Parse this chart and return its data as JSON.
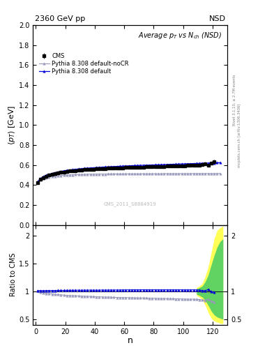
{
  "title": "2360 GeV pp",
  "nsd_label": "NSD",
  "plot_title": "Average $p_T$ vs $N_{ch}$ (NSD)",
  "xlabel": "n",
  "ylabel_main": "$\\langle p_T\\rangle$ [GeV]",
  "ylabel_ratio": "Ratio to CMS",
  "watermark": "CMS_2011_S8884919",
  "right_label_top": "Rivet 3.1.10, ≥ 2.7M events",
  "right_label_bot": "mcplots.cern.ch [arXiv:1306.3436]",
  "ylim_main": [
    0.0,
    2.0
  ],
  "xlim": [
    -2,
    130
  ],
  "cms_color": "black",
  "blue_color": "#0000dd",
  "gray_color": "#9999bb",
  "band_yellow": "#ffff44",
  "band_green": "#44cc66",
  "cms_x": [
    1,
    3,
    5,
    7,
    9,
    11,
    13,
    15,
    17,
    19,
    21,
    23,
    25,
    27,
    29,
    31,
    33,
    35,
    37,
    39,
    41,
    43,
    45,
    47,
    49,
    51,
    53,
    55,
    57,
    59,
    61,
    63,
    65,
    67,
    69,
    71,
    73,
    75,
    77,
    79,
    81,
    83,
    85,
    87,
    89,
    91,
    93,
    95,
    97,
    99,
    101,
    103,
    105,
    107,
    109,
    111,
    113,
    115,
    117,
    119,
    121
  ],
  "cms_y": [
    0.424,
    0.455,
    0.474,
    0.487,
    0.497,
    0.506,
    0.513,
    0.519,
    0.525,
    0.53,
    0.534,
    0.538,
    0.541,
    0.544,
    0.547,
    0.55,
    0.552,
    0.554,
    0.556,
    0.558,
    0.56,
    0.562,
    0.563,
    0.565,
    0.566,
    0.567,
    0.569,
    0.57,
    0.571,
    0.572,
    0.573,
    0.574,
    0.575,
    0.576,
    0.577,
    0.578,
    0.579,
    0.58,
    0.581,
    0.582,
    0.583,
    0.584,
    0.585,
    0.586,
    0.587,
    0.588,
    0.589,
    0.59,
    0.591,
    0.592,
    0.593,
    0.594,
    0.595,
    0.596,
    0.597,
    0.6,
    0.605,
    0.61,
    0.595,
    0.62,
    0.63
  ],
  "cms_yerr": [
    0.012,
    0.009,
    0.008,
    0.007,
    0.006,
    0.006,
    0.005,
    0.005,
    0.005,
    0.005,
    0.004,
    0.004,
    0.004,
    0.004,
    0.004,
    0.004,
    0.004,
    0.004,
    0.004,
    0.004,
    0.004,
    0.004,
    0.004,
    0.004,
    0.004,
    0.004,
    0.004,
    0.004,
    0.004,
    0.004,
    0.004,
    0.004,
    0.004,
    0.004,
    0.004,
    0.004,
    0.004,
    0.004,
    0.004,
    0.004,
    0.004,
    0.004,
    0.004,
    0.004,
    0.004,
    0.004,
    0.004,
    0.004,
    0.004,
    0.004,
    0.005,
    0.005,
    0.005,
    0.006,
    0.006,
    0.007,
    0.008,
    0.01,
    0.012,
    0.015,
    0.02
  ],
  "py_default_x": [
    1,
    3,
    5,
    7,
    9,
    11,
    13,
    15,
    17,
    19,
    21,
    23,
    25,
    27,
    29,
    31,
    33,
    35,
    37,
    39,
    41,
    43,
    45,
    47,
    49,
    51,
    53,
    55,
    57,
    59,
    61,
    63,
    65,
    67,
    69,
    71,
    73,
    75,
    77,
    79,
    81,
    83,
    85,
    87,
    89,
    91,
    93,
    95,
    97,
    99,
    101,
    103,
    105,
    107,
    109,
    111,
    113,
    115,
    117,
    119,
    121,
    123,
    125
  ],
  "py_default_y": [
    0.43,
    0.463,
    0.482,
    0.496,
    0.507,
    0.516,
    0.523,
    0.53,
    0.536,
    0.541,
    0.546,
    0.55,
    0.554,
    0.557,
    0.56,
    0.563,
    0.566,
    0.568,
    0.57,
    0.572,
    0.574,
    0.576,
    0.578,
    0.58,
    0.581,
    0.583,
    0.584,
    0.586,
    0.587,
    0.589,
    0.59,
    0.591,
    0.593,
    0.594,
    0.595,
    0.596,
    0.597,
    0.598,
    0.599,
    0.6,
    0.601,
    0.602,
    0.603,
    0.604,
    0.605,
    0.606,
    0.607,
    0.608,
    0.609,
    0.61,
    0.611,
    0.612,
    0.613,
    0.614,
    0.615,
    0.616,
    0.617,
    0.618,
    0.619,
    0.62,
    0.621,
    0.622,
    0.623
  ],
  "py_nocr_x": [
    1,
    3,
    5,
    7,
    9,
    11,
    13,
    15,
    17,
    19,
    21,
    23,
    25,
    27,
    29,
    31,
    33,
    35,
    37,
    39,
    41,
    43,
    45,
    47,
    49,
    51,
    53,
    55,
    57,
    59,
    61,
    63,
    65,
    67,
    69,
    71,
    73,
    75,
    77,
    79,
    81,
    83,
    85,
    87,
    89,
    91,
    93,
    95,
    97,
    99,
    101,
    103,
    105,
    107,
    109,
    111,
    113,
    115,
    117,
    119,
    121,
    123,
    125
  ],
  "py_nocr_y": [
    0.43,
    0.452,
    0.464,
    0.472,
    0.479,
    0.484,
    0.488,
    0.491,
    0.494,
    0.496,
    0.498,
    0.5,
    0.502,
    0.503,
    0.504,
    0.505,
    0.506,
    0.507,
    0.507,
    0.508,
    0.508,
    0.509,
    0.509,
    0.509,
    0.51,
    0.51,
    0.51,
    0.51,
    0.51,
    0.511,
    0.511,
    0.511,
    0.511,
    0.511,
    0.511,
    0.511,
    0.512,
    0.512,
    0.512,
    0.512,
    0.512,
    0.512,
    0.512,
    0.513,
    0.513,
    0.513,
    0.513,
    0.513,
    0.513,
    0.513,
    0.513,
    0.513,
    0.513,
    0.514,
    0.514,
    0.514,
    0.514,
    0.514,
    0.514,
    0.514,
    0.514,
    0.514,
    0.515
  ],
  "unc_band_x": [
    109,
    111,
    113,
    115,
    117,
    119,
    121,
    123,
    125,
    127
  ],
  "unc_yellow_lo": [
    0.93,
    0.9,
    0.85,
    0.75,
    0.62,
    0.52,
    0.47,
    0.45,
    0.43,
    0.42
  ],
  "unc_yellow_hi": [
    1.07,
    1.1,
    1.15,
    1.28,
    1.45,
    1.7,
    1.95,
    2.1,
    2.15,
    2.18
  ],
  "unc_green_lo": [
    0.95,
    0.93,
    0.9,
    0.84,
    0.75,
    0.65,
    0.58,
    0.54,
    0.52,
    0.5
  ],
  "unc_green_hi": [
    1.05,
    1.07,
    1.1,
    1.18,
    1.3,
    1.48,
    1.65,
    1.8,
    1.9,
    1.95
  ]
}
